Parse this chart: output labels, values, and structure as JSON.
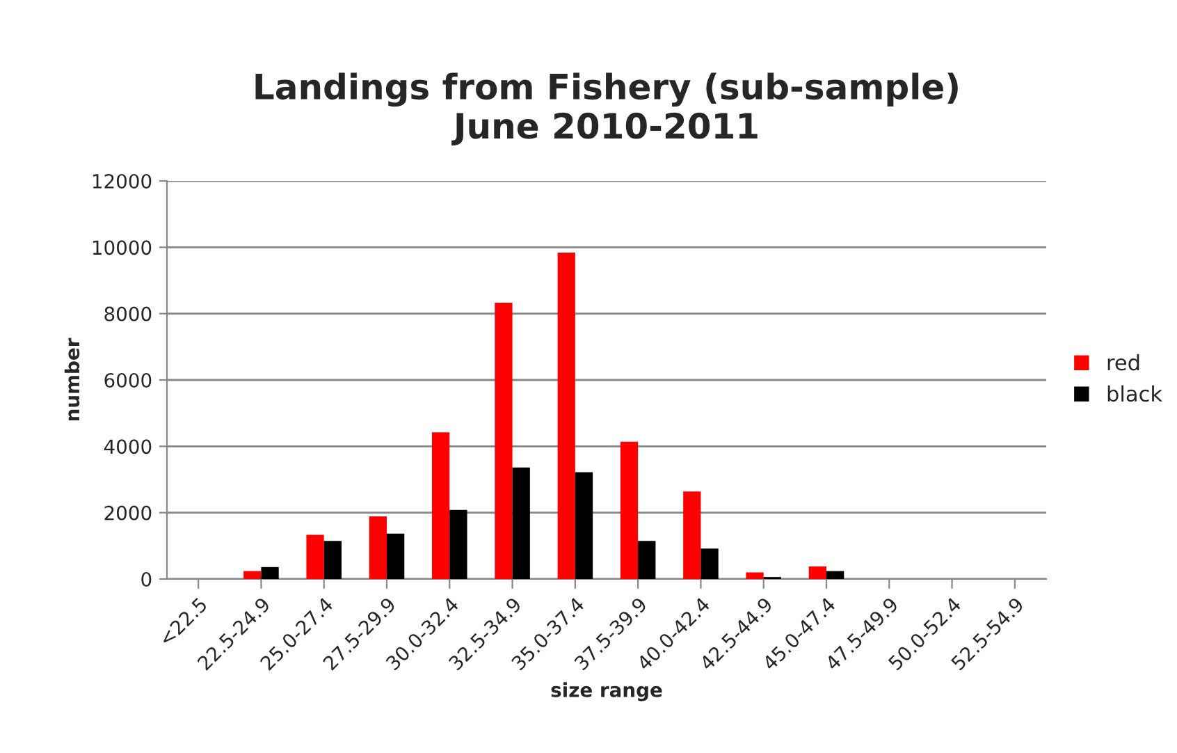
{
  "chart_data": {
    "type": "bar",
    "title": "Landings from Fishery (sub-sample)\nJune 2010-2011",
    "xlabel": "size range",
    "ylabel": "number",
    "categories": [
      "<22.5",
      "22.5-24.9",
      "25.0-27.4",
      "27.5-29.9",
      "30.0-32.4",
      "32.5-34.9",
      "35.0-37.4",
      "37.5-39.9",
      "40.0-42.4",
      "42.5-44.9",
      "45.0-47.4",
      "47.5-49.9",
      "50.0-52.4",
      "52.5-54.9"
    ],
    "series": [
      {
        "name": "red",
        "color": "#ff0000",
        "values": [
          0,
          240,
          1330,
          1890,
          4420,
          8330,
          9840,
          4140,
          2640,
          200,
          380,
          0,
          0,
          0
        ]
      },
      {
        "name": "black",
        "color": "#000000",
        "values": [
          0,
          360,
          1150,
          1370,
          2080,
          3360,
          3220,
          1150,
          920,
          60,
          240,
          0,
          0,
          0
        ]
      }
    ],
    "ylim": [
      0,
      12000
    ],
    "yticks": [
      0,
      2000,
      4000,
      6000,
      8000,
      10000,
      12000
    ],
    "grid": "y",
    "legend": "right"
  }
}
